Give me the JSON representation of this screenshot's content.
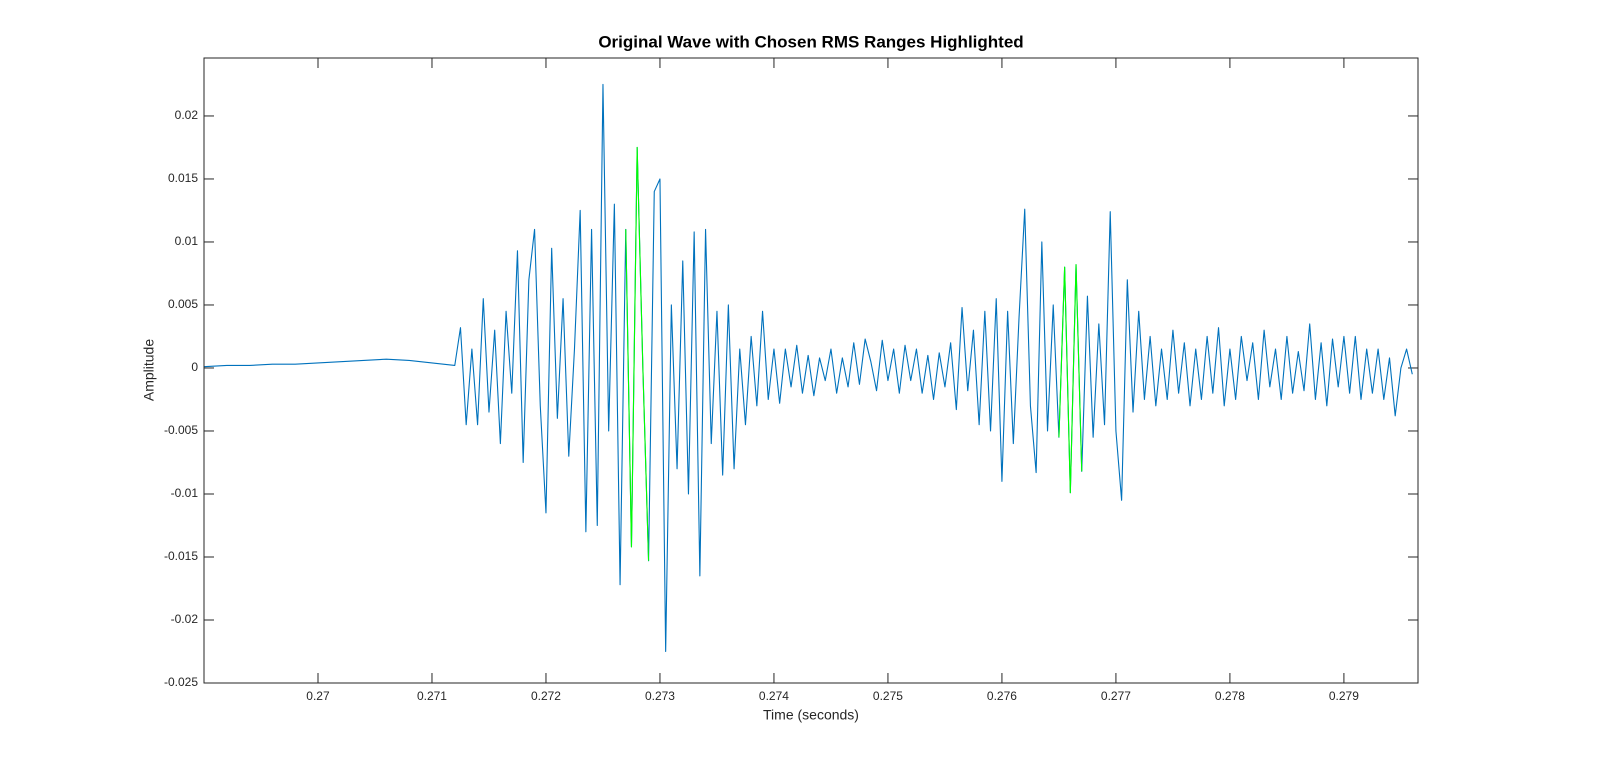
{
  "chart_data": {
    "type": "line",
    "title": "Original Wave with Chosen RMS Ranges Highlighted",
    "xlabel": "Time (seconds)",
    "ylabel": "Amplitude",
    "xlim": [
      0.269,
      0.27965
    ],
    "ylim": [
      -0.025,
      0.0246
    ],
    "xticks": [
      0.27,
      0.271,
      0.272,
      0.273,
      0.274,
      0.275,
      0.276,
      0.277,
      0.278,
      0.279
    ],
    "yticks": [
      -0.025,
      -0.02,
      -0.015,
      -0.01,
      -0.005,
      0,
      0.005,
      0.01,
      0.015,
      0.02
    ],
    "box": true,
    "x": [
      0.269,
      0.2692,
      0.2694,
      0.2696,
      0.2698,
      0.27,
      0.2702,
      0.2704,
      0.2706,
      0.2708,
      0.271,
      0.2711,
      0.2712,
      0.27125,
      0.2713,
      0.27135,
      0.2714,
      0.27145,
      0.2715,
      0.27155,
      0.2716,
      0.27165,
      0.2717,
      0.27175,
      0.2718,
      0.27185,
      0.2719,
      0.27195,
      0.272,
      0.27205,
      0.2721,
      0.27215,
      0.2722,
      0.27225,
      0.2723,
      0.27235,
      0.2724,
      0.27245,
      0.2725,
      0.27255,
      0.2726,
      0.27265,
      0.2727,
      0.27275,
      0.2728,
      0.27285,
      0.2729,
      0.27295,
      0.273,
      0.27305,
      0.2731,
      0.27315,
      0.2732,
      0.27325,
      0.2733,
      0.27335,
      0.2734,
      0.27345,
      0.2735,
      0.27355,
      0.2736,
      0.27365,
      0.2737,
      0.27375,
      0.2738,
      0.27385,
      0.2739,
      0.27395,
      0.274,
      0.27405,
      0.2741,
      0.27415,
      0.2742,
      0.27425,
      0.2743,
      0.27435,
      0.2744,
      0.27445,
      0.2745,
      0.27455,
      0.2746,
      0.27465,
      0.2747,
      0.27475,
      0.2748,
      0.27485,
      0.2749,
      0.27495,
      0.275,
      0.27505,
      0.2751,
      0.27515,
      0.2752,
      0.27525,
      0.2753,
      0.27535,
      0.2754,
      0.27545,
      0.2755,
      0.27555,
      0.2756,
      0.27565,
      0.2757,
      0.27575,
      0.2758,
      0.27585,
      0.2759,
      0.27595,
      0.276,
      0.27605,
      0.2761,
      0.27615,
      0.2762,
      0.27625,
      0.2763,
      0.27635,
      0.2764,
      0.27645,
      0.2765,
      0.27655,
      0.2766,
      0.27665,
      0.2767,
      0.27675,
      0.2768,
      0.27685,
      0.2769,
      0.27695,
      0.277,
      0.27705,
      0.2771,
      0.27715,
      0.2772,
      0.27725,
      0.2773,
      0.27735,
      0.2774,
      0.27745,
      0.2775,
      0.27755,
      0.2776,
      0.27765,
      0.2777,
      0.27775,
      0.2778,
      0.27785,
      0.2779,
      0.27795,
      0.278,
      0.27805,
      0.2781,
      0.27815,
      0.2782,
      0.27825,
      0.2783,
      0.27835,
      0.2784,
      0.27845,
      0.2785,
      0.27855,
      0.2786,
      0.27865,
      0.2787,
      0.27875,
      0.2788,
      0.27885,
      0.2789,
      0.27895,
      0.279,
      0.27905,
      0.2791,
      0.27915,
      0.2792,
      0.27925,
      0.2793,
      0.27935,
      0.2794,
      0.27945,
      0.2795,
      0.27955,
      0.2796
    ],
    "series": [
      {
        "color": "#0072bd",
        "values": [
          0.0001,
          0.0002,
          0.0002,
          0.0003,
          0.0003,
          0.0004,
          0.0005,
          0.0006,
          0.0007,
          0.0006,
          0.0004,
          0.0003,
          0.0002,
          0.0032,
          -0.0045,
          0.0015,
          -0.0045,
          0.0055,
          -0.0035,
          0.003,
          -0.006,
          0.0045,
          -0.002,
          0.0093,
          -0.0075,
          0.007,
          0.011,
          -0.003,
          -0.0115,
          0.0095,
          -0.004,
          0.0055,
          -0.007,
          0.0015,
          0.0125,
          -0.013,
          0.011,
          -0.0125,
          0.0225,
          -0.005,
          0.013,
          -0.0172,
          0.011,
          -0.0142,
          0.0175,
          0,
          -0.0153,
          0.014,
          0.015,
          -0.0225,
          0.005,
          -0.008,
          0.0085,
          -0.01,
          0.0108,
          -0.0165,
          0.011,
          -0.006,
          0.0045,
          -0.0085,
          0.005,
          -0.008,
          0.0015,
          -0.0045,
          0.0025,
          -0.003,
          0.0045,
          -0.0025,
          0.0015,
          -0.0028,
          0.0015,
          -0.0015,
          0.0018,
          -0.002,
          0.001,
          -0.0022,
          0.0008,
          -0.001,
          0.0015,
          -0.002,
          0.0008,
          -0.0015,
          0.002,
          -0.0013,
          0.0023,
          0.0005,
          -0.0018,
          0.0022,
          -0.001,
          0.0015,
          -0.002,
          0.0018,
          -0.001,
          0.0015,
          -0.002,
          0.001,
          -0.0025,
          0.0012,
          -0.0015,
          0.002,
          -0.0033,
          0.0048,
          -0.0018,
          0.003,
          -0.0045,
          0.0045,
          -0.005,
          0.0055,
          -0.009,
          0.0045,
          -0.006,
          0.004,
          0.0126,
          -0.003,
          -0.0083,
          0.01,
          -0.005,
          0.005,
          -0.0055,
          0.008,
          -0.0099,
          0.0082,
          -0.0082,
          0.0057,
          -0.0055,
          0.0035,
          -0.0045,
          0.0124,
          -0.005,
          -0.0105,
          0.007,
          -0.0035,
          0.0045,
          -0.0025,
          0.0025,
          -0.003,
          0.0015,
          -0.0025,
          0.003,
          -0.002,
          0.002,
          -0.003,
          0.0015,
          -0.0025,
          0.0025,
          -0.002,
          0.0032,
          -0.003,
          0.0015,
          -0.0025,
          0.0025,
          -0.001,
          0.002,
          -0.0025,
          0.003,
          -0.0015,
          0.0015,
          -0.0025,
          0.0025,
          -0.002,
          0.0013,
          -0.0018,
          0.0035,
          -0.0025,
          0.002,
          -0.003,
          0.0023,
          -0.0015,
          0.0025,
          -0.002,
          0.0025,
          -0.0025,
          0.0015,
          -0.002,
          0.0015,
          -0.0025,
          0.0008,
          -0.0038,
          0,
          0.0015,
          -0.0005
        ]
      },
      {
        "color": "#00ff00",
        "x": [
          0.2727,
          0.27275,
          0.2728,
          0.27285,
          0.2729
        ],
        "values": [
          0.011,
          -0.0142,
          0.0175,
          0,
          -0.0153
        ]
      },
      {
        "color": "#00ff00",
        "x": [
          0.2765,
          0.27655,
          0.2766,
          0.27665,
          0.2767
        ],
        "values": [
          -0.0055,
          0.008,
          -0.0099,
          0.0082,
          -0.0082
        ]
      }
    ]
  }
}
